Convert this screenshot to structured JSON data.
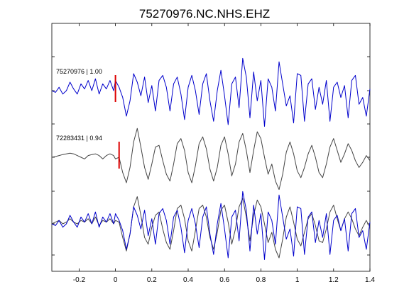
{
  "chart_data": {
    "type": "line",
    "title": "75270976.NC.NHS.EHZ",
    "xlabel": "",
    "ylabel": "",
    "xlim": [
      -0.35,
      1.4
    ],
    "x_ticks": [
      -0.2,
      0,
      0.2,
      0.4,
      0.6,
      0.8,
      1,
      1.2,
      1.4
    ],
    "x_tick_labels": [
      "-0.2",
      "0",
      "0.2",
      "0.4",
      "0.6",
      "0.8",
      "1",
      "1.2",
      "1.4"
    ],
    "grid": false,
    "panels": [
      {
        "label": "75270976 | 1.00",
        "pick_time": 0.0,
        "series": [
          {
            "color": "#0000cc",
            "x": [
              -0.35,
              -0.33,
              -0.31,
              -0.29,
              -0.27,
              -0.25,
              -0.23,
              -0.21,
              -0.19,
              -0.17,
              -0.15,
              -0.13,
              -0.11,
              -0.09,
              -0.07,
              -0.05,
              -0.03,
              -0.01,
              0.0,
              0.02,
              0.04,
              0.06,
              0.08,
              0.1,
              0.12,
              0.14,
              0.16,
              0.18,
              0.2,
              0.22,
              0.24,
              0.26,
              0.28,
              0.3,
              0.32,
              0.34,
              0.36,
              0.38,
              0.4,
              0.42,
              0.44,
              0.46,
              0.48,
              0.5,
              0.52,
              0.54,
              0.56,
              0.58,
              0.6,
              0.62,
              0.64,
              0.66,
              0.68,
              0.7,
              0.72,
              0.74,
              0.76,
              0.78,
              0.8,
              0.82,
              0.84,
              0.86,
              0.88,
              0.9,
              0.92,
              0.94,
              0.96,
              0.98,
              1.0,
              1.02,
              1.04,
              1.06,
              1.08,
              1.1,
              1.12,
              1.14,
              1.16,
              1.18,
              1.2,
              1.22,
              1.24,
              1.26,
              1.28,
              1.3,
              1.32,
              1.34,
              1.36,
              1.38,
              1.4
            ],
            "y": [
              0.0,
              -0.05,
              0.1,
              -0.1,
              0.0,
              0.25,
              0.05,
              -0.1,
              0.2,
              0.05,
              0.3,
              0.0,
              0.35,
              -0.1,
              0.2,
              0.05,
              0.3,
              0.0,
              0.3,
              0.1,
              -0.2,
              -0.75,
              -0.3,
              0.5,
              0.25,
              -0.15,
              0.4,
              -0.35,
              0.15,
              -0.6,
              0.3,
              0.45,
              0.1,
              -0.6,
              0.2,
              0.4,
              -0.1,
              -0.85,
              0.1,
              0.45,
              0.0,
              -0.7,
              0.2,
              0.5,
              -0.3,
              -0.9,
              0.0,
              0.6,
              -0.15,
              -1.0,
              0.2,
              0.4,
              -0.5,
              0.95,
              0.4,
              -0.8,
              0.55,
              -0.3,
              0.3,
              -1.05,
              0.35,
              0.1,
              -0.6,
              0.85,
              0.2,
              -0.45,
              -0.15,
              -0.95,
              0.5,
              0.45,
              -0.9,
              0.2,
              0.35,
              -0.55,
              0.1,
              -0.4,
              0.3,
              -0.9,
              0.1,
              0.25,
              -0.2,
              0.15,
              -0.8,
              0.3,
              0.45,
              -0.4,
              -0.2,
              -0.75,
              0.05
            ]
          }
        ]
      },
      {
        "label": "72283431 | 0.94",
        "pick_time": 0.02,
        "series": [
          {
            "color": "#444444",
            "x": [
              -0.35,
              -0.33,
              -0.31,
              -0.29,
              -0.27,
              -0.25,
              -0.23,
              -0.21,
              -0.19,
              -0.17,
              -0.15,
              -0.13,
              -0.11,
              -0.09,
              -0.07,
              -0.05,
              -0.03,
              -0.01,
              0.0,
              0.02,
              0.04,
              0.06,
              0.08,
              0.1,
              0.12,
              0.14,
              0.16,
              0.18,
              0.2,
              0.22,
              0.24,
              0.26,
              0.28,
              0.3,
              0.32,
              0.34,
              0.36,
              0.38,
              0.4,
              0.42,
              0.44,
              0.46,
              0.48,
              0.5,
              0.52,
              0.54,
              0.56,
              0.58,
              0.6,
              0.62,
              0.64,
              0.66,
              0.68,
              0.7,
              0.72,
              0.74,
              0.76,
              0.78,
              0.8,
              0.82,
              0.84,
              0.86,
              0.88,
              0.9,
              0.92,
              0.94,
              0.96,
              0.98,
              1.0,
              1.02,
              1.04,
              1.06,
              1.08,
              1.1,
              1.12,
              1.14,
              1.16,
              1.18,
              1.2,
              1.22,
              1.24,
              1.26,
              1.28,
              1.3,
              1.32,
              1.34,
              1.36,
              1.38,
              1.4
            ],
            "y": [
              0.0,
              0.02,
              0.05,
              0.08,
              0.1,
              0.12,
              0.1,
              0.05,
              0.0,
              -0.05,
              0.05,
              0.08,
              0.1,
              0.05,
              -0.05,
              0.05,
              0.1,
              0.05,
              -0.05,
              0.0,
              -0.45,
              -0.75,
              -0.3,
              0.45,
              0.85,
              0.3,
              -0.3,
              -0.65,
              -0.2,
              0.3,
              0.35,
              -0.1,
              -0.5,
              -0.7,
              -0.2,
              0.4,
              0.55,
              0.2,
              -0.45,
              -0.75,
              -0.25,
              0.4,
              0.6,
              0.25,
              -0.35,
              -0.7,
              -0.3,
              0.35,
              0.6,
              0.1,
              -0.55,
              -0.2,
              0.45,
              0.7,
              0.2,
              -0.45,
              0.2,
              0.75,
              0.55,
              0.0,
              -0.5,
              -0.2,
              -0.7,
              -0.95,
              -0.5,
              0.15,
              0.45,
              0.1,
              -0.4,
              -0.6,
              -0.3,
              0.1,
              0.35,
              0.0,
              -0.45,
              -0.6,
              -0.2,
              0.3,
              0.55,
              0.2,
              -0.15,
              0.1,
              0.4,
              0.2,
              -0.1,
              -0.3,
              -0.15,
              0.05,
              -0.1
            ]
          }
        ]
      },
      {
        "label": "",
        "pick_time": null,
        "series": [
          {
            "color": "#444444",
            "x": [
              -0.35,
              -0.33,
              -0.31,
              -0.29,
              -0.27,
              -0.25,
              -0.23,
              -0.21,
              -0.19,
              -0.17,
              -0.15,
              -0.13,
              -0.11,
              -0.09,
              -0.07,
              -0.05,
              -0.03,
              -0.01,
              0.0,
              0.02,
              0.04,
              0.06,
              0.08,
              0.1,
              0.12,
              0.14,
              0.16,
              0.18,
              0.2,
              0.22,
              0.24,
              0.26,
              0.28,
              0.3,
              0.32,
              0.34,
              0.36,
              0.38,
              0.4,
              0.42,
              0.44,
              0.46,
              0.48,
              0.5,
              0.52,
              0.54,
              0.56,
              0.58,
              0.6,
              0.62,
              0.64,
              0.66,
              0.68,
              0.7,
              0.72,
              0.74,
              0.76,
              0.78,
              0.8,
              0.82,
              0.84,
              0.86,
              0.88,
              0.9,
              0.92,
              0.94,
              0.96,
              0.98,
              1.0,
              1.02,
              1.04,
              1.06,
              1.08,
              1.1,
              1.12,
              1.14,
              1.16,
              1.18,
              1.2,
              1.22,
              1.24,
              1.26,
              1.28,
              1.3,
              1.32,
              1.34,
              1.36,
              1.38,
              1.4
            ],
            "y": [
              0.0,
              0.05,
              0.1,
              0.0,
              0.05,
              0.15,
              0.05,
              0.0,
              0.1,
              0.05,
              0.15,
              0.0,
              0.2,
              -0.05,
              0.1,
              0.05,
              0.15,
              0.0,
              0.1,
              0.05,
              -0.4,
              -0.8,
              -0.3,
              0.5,
              0.8,
              0.25,
              -0.4,
              -0.6,
              -0.1,
              0.25,
              0.35,
              -0.15,
              -0.55,
              -0.75,
              -0.2,
              0.45,
              0.55,
              0.15,
              -0.5,
              -0.8,
              -0.2,
              0.45,
              0.55,
              0.2,
              -0.4,
              -0.75,
              -0.25,
              0.4,
              0.55,
              0.05,
              -0.6,
              -0.15,
              0.5,
              0.75,
              0.2,
              -0.5,
              0.25,
              0.7,
              0.5,
              0.0,
              -0.55,
              -0.25,
              -0.75,
              -1.0,
              -0.45,
              0.2,
              0.5,
              0.05,
              -0.45,
              -0.65,
              -0.25,
              0.15,
              0.3,
              -0.05,
              -0.5,
              -0.55,
              -0.15,
              0.35,
              0.55,
              0.15,
              -0.2,
              0.15,
              0.35,
              0.15,
              -0.15,
              -0.35,
              -0.1,
              0.1,
              -0.1
            ]
          },
          {
            "color": "#0000cc",
            "x": [
              -0.35,
              -0.33,
              -0.31,
              -0.29,
              -0.27,
              -0.25,
              -0.23,
              -0.21,
              -0.19,
              -0.17,
              -0.15,
              -0.13,
              -0.11,
              -0.09,
              -0.07,
              -0.05,
              -0.03,
              -0.01,
              0.0,
              0.02,
              0.04,
              0.06,
              0.08,
              0.1,
              0.12,
              0.14,
              0.16,
              0.18,
              0.2,
              0.22,
              0.24,
              0.26,
              0.28,
              0.3,
              0.32,
              0.34,
              0.36,
              0.38,
              0.4,
              0.42,
              0.44,
              0.46,
              0.48,
              0.5,
              0.52,
              0.54,
              0.56,
              0.58,
              0.6,
              0.62,
              0.64,
              0.66,
              0.68,
              0.7,
              0.72,
              0.74,
              0.76,
              0.78,
              0.8,
              0.82,
              0.84,
              0.86,
              0.88,
              0.9,
              0.92,
              0.94,
              0.96,
              0.98,
              1.0,
              1.02,
              1.04,
              1.06,
              1.08,
              1.1,
              1.12,
              1.14,
              1.16,
              1.18,
              1.2,
              1.22,
              1.24,
              1.26,
              1.28,
              1.3,
              1.32,
              1.34,
              1.36,
              1.38,
              1.4
            ],
            "y": [
              0.0,
              -0.05,
              0.1,
              -0.1,
              0.0,
              0.25,
              0.05,
              -0.1,
              0.2,
              0.05,
              0.3,
              0.0,
              0.35,
              -0.1,
              0.2,
              0.05,
              0.3,
              0.0,
              0.3,
              0.1,
              -0.2,
              -0.75,
              -0.3,
              0.5,
              0.25,
              -0.15,
              0.4,
              -0.35,
              0.15,
              -0.6,
              0.3,
              0.45,
              0.1,
              -0.6,
              0.2,
              0.4,
              -0.1,
              -0.85,
              0.1,
              0.45,
              0.0,
              -0.7,
              0.2,
              0.5,
              -0.3,
              -0.9,
              0.0,
              0.6,
              -0.15,
              -1.0,
              0.2,
              0.4,
              -0.5,
              0.95,
              0.4,
              -0.8,
              0.55,
              -0.3,
              0.3,
              -1.05,
              0.35,
              0.1,
              -0.6,
              0.85,
              0.2,
              -0.45,
              -0.15,
              -0.95,
              0.5,
              0.45,
              -0.9,
              0.2,
              0.35,
              -0.55,
              0.1,
              -0.4,
              0.3,
              -0.9,
              0.1,
              0.25,
              -0.2,
              0.15,
              -0.8,
              0.3,
              0.45,
              -0.4,
              -0.2,
              -0.75,
              0.05
            ]
          }
        ]
      }
    ],
    "pick_color": "#dd0000",
    "axis_color": "#000000"
  }
}
